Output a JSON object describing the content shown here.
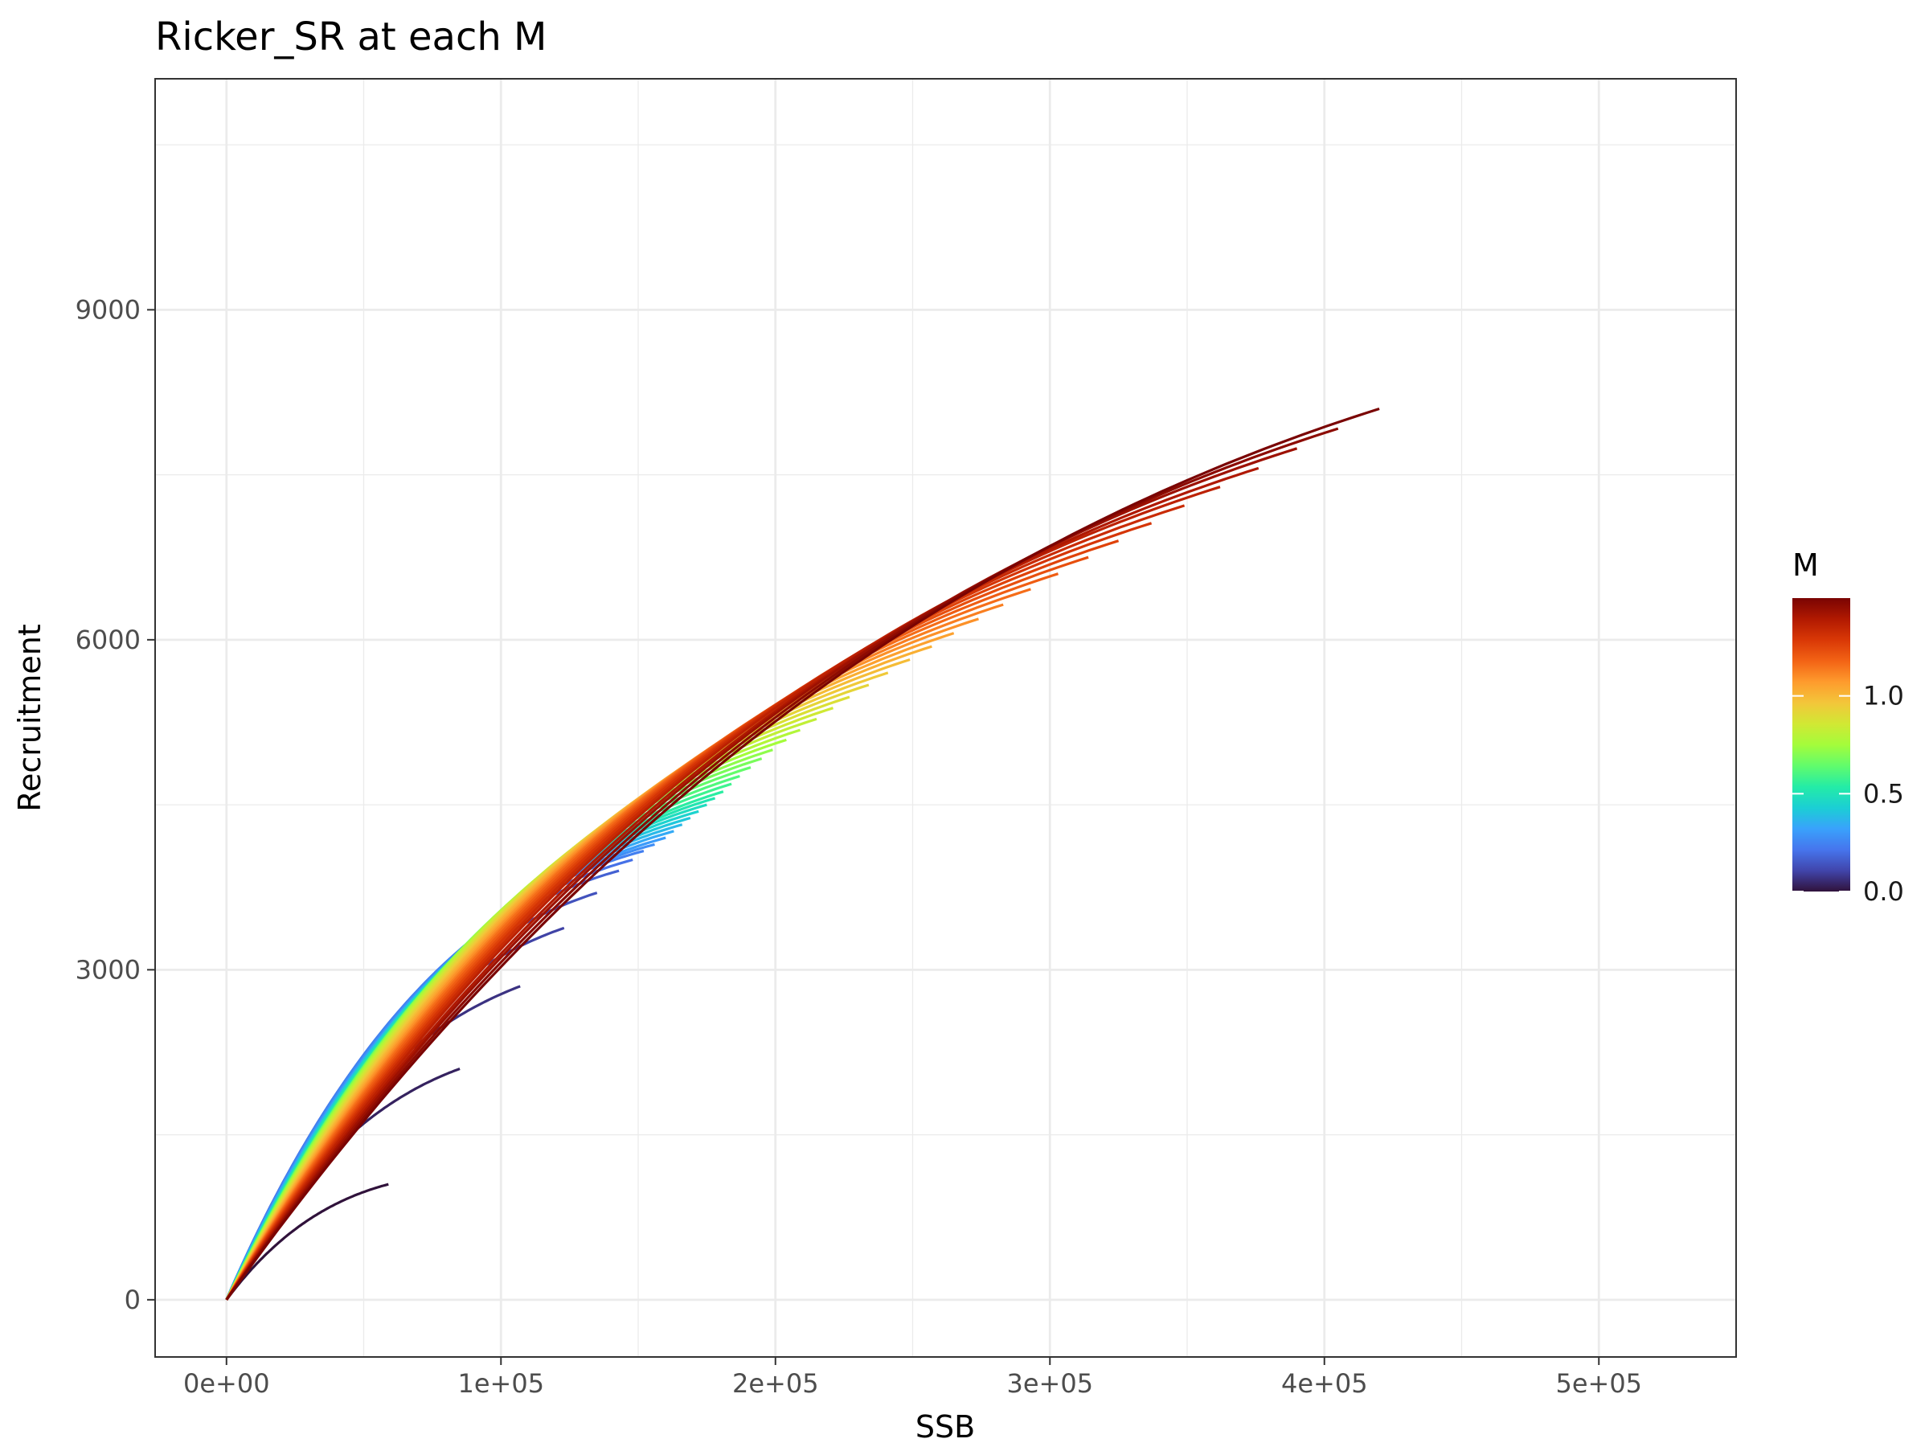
{
  "chart_data": {
    "type": "line",
    "title": "Ricker_SR at each M",
    "xlabel": "SSB",
    "ylabel": "Recruitment",
    "xlim": [
      -26000,
      550000
    ],
    "ylim": [
      -520,
      11100
    ],
    "x_ticks": [
      0,
      100000,
      200000,
      300000,
      400000,
      500000
    ],
    "x_tick_labels": [
      "0e+00",
      "1e+05",
      "2e+05",
      "3e+05",
      "4e+05",
      "5e+05"
    ],
    "y_ticks": [
      0,
      3000,
      6000,
      9000
    ],
    "y_tick_labels": [
      "0",
      "3000",
      "6000",
      "9000"
    ],
    "grid": true,
    "legend": {
      "title": "M",
      "placement": "right",
      "type": "colorbar",
      "range": [
        0,
        1.5
      ],
      "breaks": [
        0.0,
        0.5,
        1.0
      ],
      "break_labels": [
        "0.0",
        "0.5",
        "1.0"
      ],
      "palette": [
        "#30123b",
        "#4145ab",
        "#4675ed",
        "#39a2fc",
        "#1bcfd4",
        "#24eca6",
        "#61fc6c",
        "#a4fc3b",
        "#d1e834",
        "#f3c63a",
        "#fe9b2d",
        "#f36315",
        "#d93806",
        "#b11901",
        "#7a0403"
      ]
    },
    "series": {
      "count": 45,
      "M_values": [
        0.0,
        0.0341,
        0.0682,
        0.1023,
        0.1364,
        0.1705,
        0.2045,
        0.2386,
        0.2727,
        0.3068,
        0.3409,
        0.375,
        0.4091,
        0.4432,
        0.4773,
        0.5114,
        0.5455,
        0.5795,
        0.6136,
        0.6477,
        0.6818,
        0.7159,
        0.75,
        0.7841,
        0.8182,
        0.8523,
        0.8864,
        0.9205,
        0.9545,
        0.9886,
        1.0227,
        1.0568,
        1.0909,
        1.125,
        1.1591,
        1.1932,
        1.2273,
        1.2614,
        1.2955,
        1.3295,
        1.3636,
        1.3977,
        1.4318,
        1.4659,
        1.5
      ],
      "ssb_end": [
        59000,
        85000,
        107000,
        123000,
        135000,
        143000,
        148000,
        152000,
        156000,
        160000,
        163000,
        166000,
        169000,
        172000,
        175000,
        178000,
        181000,
        184000,
        187000,
        191000,
        195000,
        199000,
        204000,
        209000,
        215000,
        221000,
        227000,
        234000,
        241000,
        249000,
        257000,
        265000,
        274000,
        283000,
        293000,
        303000,
        314000,
        325000,
        337000,
        349000,
        362000,
        376000,
        390000,
        405000,
        420000
      ],
      "recruitment_end": [
        1050,
        2100,
        2850,
        3380,
        3700,
        3900,
        4000,
        4080,
        4140,
        4200,
        4260,
        4320,
        4380,
        4440,
        4500,
        4560,
        4620,
        4690,
        4760,
        4840,
        4920,
        5000,
        5090,
        5180,
        5280,
        5380,
        5480,
        5590,
        5700,
        5820,
        5940,
        6060,
        6190,
        6320,
        6460,
        6600,
        6750,
        6900,
        7060,
        7220,
        7390,
        7560,
        7740,
        7920,
        8100
      ],
      "recruitment_max": [
        1150,
        2300,
        3100,
        3600,
        3900,
        4050,
        4150,
        4230,
        4300,
        4370,
        4440,
        4510,
        4580,
        4650,
        4720,
        4800,
        4880,
        4960,
        5040,
        5130,
        5220,
        5320,
        5420,
        5530,
        5640,
        5760,
        5880,
        6010,
        6140,
        6280,
        6420,
        6570,
        6720,
        6880,
        7040,
        7210,
        7390,
        7570,
        7760,
        7960,
        8170,
        8390,
        8620,
        8860,
        9100
      ]
    }
  }
}
